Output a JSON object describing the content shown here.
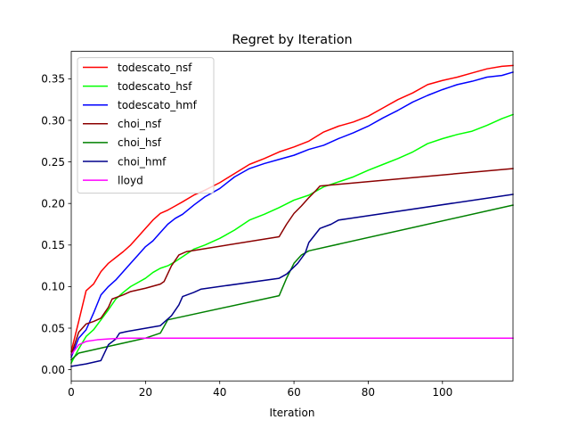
{
  "chart_data": {
    "type": "line",
    "title": "Regret by Iteration",
    "xlabel": "Iteration",
    "ylabel": "",
    "xlim": [
      0,
      119
    ],
    "ylim": [
      -0.0135,
      0.383
    ],
    "xticks": [
      0,
      20,
      40,
      60,
      80,
      100
    ],
    "yticks": [
      0.0,
      0.05,
      0.1,
      0.15,
      0.2,
      0.25,
      0.3,
      0.35
    ],
    "ytick_labels": [
      "0.00",
      "0.05",
      "0.10",
      "0.15",
      "0.20",
      "0.25",
      "0.30",
      "0.35"
    ],
    "legend_position": "top-left",
    "grid": false,
    "series": [
      {
        "name": "todescato_nsf",
        "color": "#ff0000",
        "points": [
          [
            0,
            0.022
          ],
          [
            2,
            0.058
          ],
          [
            4,
            0.095
          ],
          [
            6,
            0.103
          ],
          [
            8,
            0.118
          ],
          [
            10,
            0.128
          ],
          [
            12,
            0.135
          ],
          [
            14,
            0.142
          ],
          [
            16,
            0.15
          ],
          [
            18,
            0.16
          ],
          [
            20,
            0.17
          ],
          [
            22,
            0.18
          ],
          [
            24,
            0.188
          ],
          [
            26,
            0.192
          ],
          [
            28,
            0.197
          ],
          [
            30,
            0.202
          ],
          [
            33,
            0.21
          ],
          [
            36,
            0.216
          ],
          [
            40,
            0.225
          ],
          [
            44,
            0.236
          ],
          [
            48,
            0.247
          ],
          [
            52,
            0.254
          ],
          [
            56,
            0.262
          ],
          [
            60,
            0.268
          ],
          [
            64,
            0.275
          ],
          [
            68,
            0.286
          ],
          [
            72,
            0.293
          ],
          [
            76,
            0.298
          ],
          [
            80,
            0.305
          ],
          [
            84,
            0.315
          ],
          [
            88,
            0.325
          ],
          [
            92,
            0.333
          ],
          [
            96,
            0.343
          ],
          [
            100,
            0.348
          ],
          [
            104,
            0.352
          ],
          [
            108,
            0.357
          ],
          [
            112,
            0.362
          ],
          [
            116,
            0.365
          ],
          [
            119,
            0.366
          ]
        ]
      },
      {
        "name": "todescato_hsf",
        "color": "#00ff00",
        "points": [
          [
            0,
            0.008
          ],
          [
            2,
            0.025
          ],
          [
            4,
            0.04
          ],
          [
            6,
            0.048
          ],
          [
            8,
            0.06
          ],
          [
            10,
            0.072
          ],
          [
            12,
            0.085
          ],
          [
            14,
            0.093
          ],
          [
            16,
            0.1
          ],
          [
            18,
            0.105
          ],
          [
            20,
            0.11
          ],
          [
            22,
            0.117
          ],
          [
            24,
            0.122
          ],
          [
            26,
            0.125
          ],
          [
            28,
            0.13
          ],
          [
            30,
            0.136
          ],
          [
            33,
            0.145
          ],
          [
            36,
            0.15
          ],
          [
            40,
            0.158
          ],
          [
            44,
            0.168
          ],
          [
            48,
            0.18
          ],
          [
            52,
            0.187
          ],
          [
            56,
            0.195
          ],
          [
            60,
            0.204
          ],
          [
            64,
            0.21
          ],
          [
            68,
            0.22
          ],
          [
            72,
            0.226
          ],
          [
            76,
            0.232
          ],
          [
            80,
            0.24
          ],
          [
            84,
            0.247
          ],
          [
            88,
            0.254
          ],
          [
            92,
            0.262
          ],
          [
            96,
            0.272
          ],
          [
            100,
            0.278
          ],
          [
            104,
            0.283
          ],
          [
            108,
            0.287
          ],
          [
            112,
            0.294
          ],
          [
            116,
            0.302
          ],
          [
            119,
            0.307
          ]
        ]
      },
      {
        "name": "todescato_hmf",
        "color": "#0000ff",
        "points": [
          [
            0,
            0.015
          ],
          [
            2,
            0.038
          ],
          [
            4,
            0.048
          ],
          [
            6,
            0.068
          ],
          [
            8,
            0.09
          ],
          [
            10,
            0.1
          ],
          [
            12,
            0.108
          ],
          [
            14,
            0.118
          ],
          [
            16,
            0.128
          ],
          [
            18,
            0.138
          ],
          [
            20,
            0.148
          ],
          [
            22,
            0.155
          ],
          [
            24,
            0.165
          ],
          [
            26,
            0.175
          ],
          [
            28,
            0.182
          ],
          [
            30,
            0.187
          ],
          [
            33,
            0.198
          ],
          [
            36,
            0.208
          ],
          [
            40,
            0.218
          ],
          [
            44,
            0.232
          ],
          [
            48,
            0.242
          ],
          [
            52,
            0.248
          ],
          [
            56,
            0.253
          ],
          [
            60,
            0.258
          ],
          [
            64,
            0.265
          ],
          [
            68,
            0.27
          ],
          [
            72,
            0.278
          ],
          [
            76,
            0.285
          ],
          [
            80,
            0.293
          ],
          [
            84,
            0.303
          ],
          [
            88,
            0.312
          ],
          [
            92,
            0.322
          ],
          [
            96,
            0.33
          ],
          [
            100,
            0.337
          ],
          [
            104,
            0.343
          ],
          [
            108,
            0.347
          ],
          [
            112,
            0.352
          ],
          [
            116,
            0.354
          ],
          [
            119,
            0.358
          ]
        ]
      },
      {
        "name": "choi_nsf",
        "color": "#8b0000",
        "points": [
          [
            0,
            0.018
          ],
          [
            2,
            0.045
          ],
          [
            4,
            0.055
          ],
          [
            6,
            0.058
          ],
          [
            8,
            0.062
          ],
          [
            10,
            0.075
          ],
          [
            11,
            0.085
          ],
          [
            14,
            0.09
          ],
          [
            16,
            0.094
          ],
          [
            20,
            0.098
          ],
          [
            24,
            0.103
          ],
          [
            25,
            0.106
          ],
          [
            27,
            0.125
          ],
          [
            29,
            0.138
          ],
          [
            31,
            0.142
          ],
          [
            56,
            0.16
          ],
          [
            58,
            0.175
          ],
          [
            60,
            0.188
          ],
          [
            62,
            0.197
          ],
          [
            64,
            0.207
          ],
          [
            66,
            0.216
          ],
          [
            67,
            0.221
          ],
          [
            119,
            0.242
          ]
        ]
      },
      {
        "name": "choi_hsf",
        "color": "#008000",
        "points": [
          [
            0,
            0.012
          ],
          [
            2,
            0.02
          ],
          [
            6,
            0.024
          ],
          [
            10,
            0.028
          ],
          [
            15,
            0.033
          ],
          [
            20,
            0.038
          ],
          [
            24,
            0.044
          ],
          [
            26,
            0.06
          ],
          [
            56,
            0.089
          ],
          [
            58,
            0.11
          ],
          [
            60,
            0.128
          ],
          [
            62,
            0.138
          ],
          [
            64,
            0.143
          ],
          [
            119,
            0.198
          ]
        ]
      },
      {
        "name": "choi_hmf",
        "color": "#00008b",
        "points": [
          [
            0,
            0.004
          ],
          [
            4,
            0.007
          ],
          [
            8,
            0.011
          ],
          [
            10,
            0.03
          ],
          [
            12,
            0.037
          ],
          [
            13,
            0.044
          ],
          [
            15,
            0.046
          ],
          [
            24,
            0.053
          ],
          [
            27,
            0.065
          ],
          [
            29,
            0.078
          ],
          [
            30,
            0.088
          ],
          [
            33,
            0.093
          ],
          [
            35,
            0.097
          ],
          [
            56,
            0.11
          ],
          [
            58,
            0.115
          ],
          [
            61,
            0.128
          ],
          [
            63,
            0.14
          ],
          [
            64,
            0.153
          ],
          [
            67,
            0.17
          ],
          [
            70,
            0.175
          ],
          [
            72,
            0.18
          ],
          [
            75,
            0.182
          ],
          [
            119,
            0.211
          ]
        ]
      },
      {
        "name": "lloyd",
        "color": "#ff00ff",
        "points": [
          [
            0,
            0.018
          ],
          [
            2,
            0.03
          ],
          [
            4,
            0.034
          ],
          [
            7,
            0.036
          ],
          [
            10,
            0.037
          ],
          [
            14,
            0.038
          ],
          [
            119,
            0.038
          ]
        ]
      }
    ]
  }
}
